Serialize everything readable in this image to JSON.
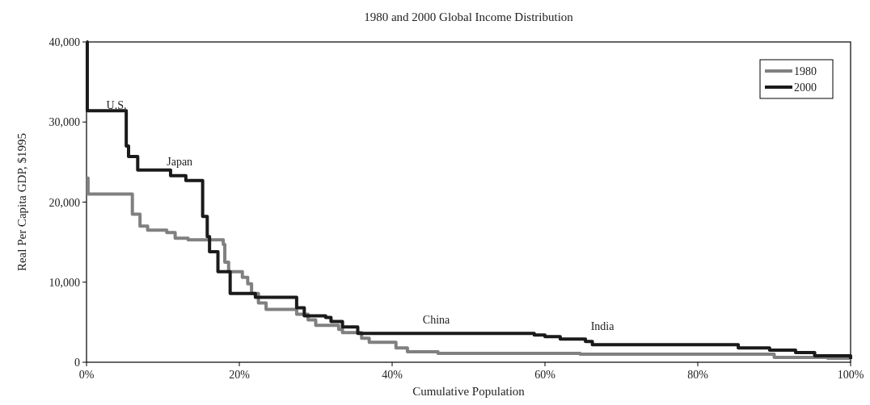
{
  "chart_data": {
    "type": "step",
    "title": "1980 and 2000 Global Income Distribution",
    "xlabel": "Cumulative Population",
    "ylabel": "Real Per Capita GDP, $1995",
    "xlim": [
      0,
      100
    ],
    "ylim": [
      0,
      40000
    ],
    "xticks": [
      {
        "value": 0,
        "label": "0%"
      },
      {
        "value": 20,
        "label": "20%"
      },
      {
        "value": 40,
        "label": "40%"
      },
      {
        "value": 60,
        "label": "60%"
      },
      {
        "value": 80,
        "label": "80%"
      },
      {
        "value": 100,
        "label": "100%"
      }
    ],
    "yticks": [
      0,
      {
        "value": 10000,
        "label": "10,000"
      },
      {
        "value": 20000,
        "label": "20,000"
      },
      {
        "value": 30000,
        "label": "30,000"
      },
      {
        "value": 40000,
        "label": "40,000"
      }
    ],
    "series": [
      {
        "name": "1980",
        "color": "#808080",
        "x": [
          0,
          0.2,
          5.7,
          6,
          7,
          8,
          10.5,
          11.6,
          13.3,
          15.6,
          17.9,
          18.1,
          18.6,
          20.4,
          21.1,
          21.6,
          22.5,
          23.5,
          27.5,
          29,
          30,
          30.5,
          33,
          33.5,
          35.5,
          36,
          37,
          40.5,
          42,
          46,
          64.6,
          90,
          97,
          100
        ],
        "values": [
          23000,
          21000,
          21000,
          18500,
          17000,
          16500,
          16200,
          15500,
          15300,
          15300,
          14700,
          12500,
          11300,
          10600,
          9800,
          8600,
          7400,
          6600,
          6000,
          5300,
          4600,
          4600,
          4100,
          3700,
          3700,
          3000,
          2500,
          1800,
          1300,
          1100,
          1000,
          600,
          500,
          400
        ]
      },
      {
        "name": "2000",
        "color": "#1a1a1a",
        "x": [
          0,
          0.1,
          5.1,
          5.2,
          5.5,
          6.7,
          11,
          13,
          14.8,
          15.2,
          15.8,
          16.1,
          16.8,
          17.2,
          18.4,
          18.8,
          22.1,
          27.5,
          28.5,
          31.3,
          32,
          33.5,
          35.5,
          58.6,
          60,
          62,
          65.3,
          66.2,
          85.3,
          89.4,
          92.8,
          95.3,
          100
        ],
        "values": [
          40000,
          31400,
          31400,
          27000,
          25700,
          24000,
          23300,
          22700,
          22700,
          18200,
          15700,
          13800,
          13800,
          11300,
          11300,
          8600,
          8100,
          6800,
          5800,
          5600,
          5100,
          4400,
          3600,
          3400,
          3200,
          2900,
          2600,
          2200,
          1800,
          1500,
          1200,
          800,
          400
        ]
      }
    ],
    "legend": "top right",
    "annotations": [
      "U.S.",
      "Japan",
      "China",
      "India"
    ]
  }
}
